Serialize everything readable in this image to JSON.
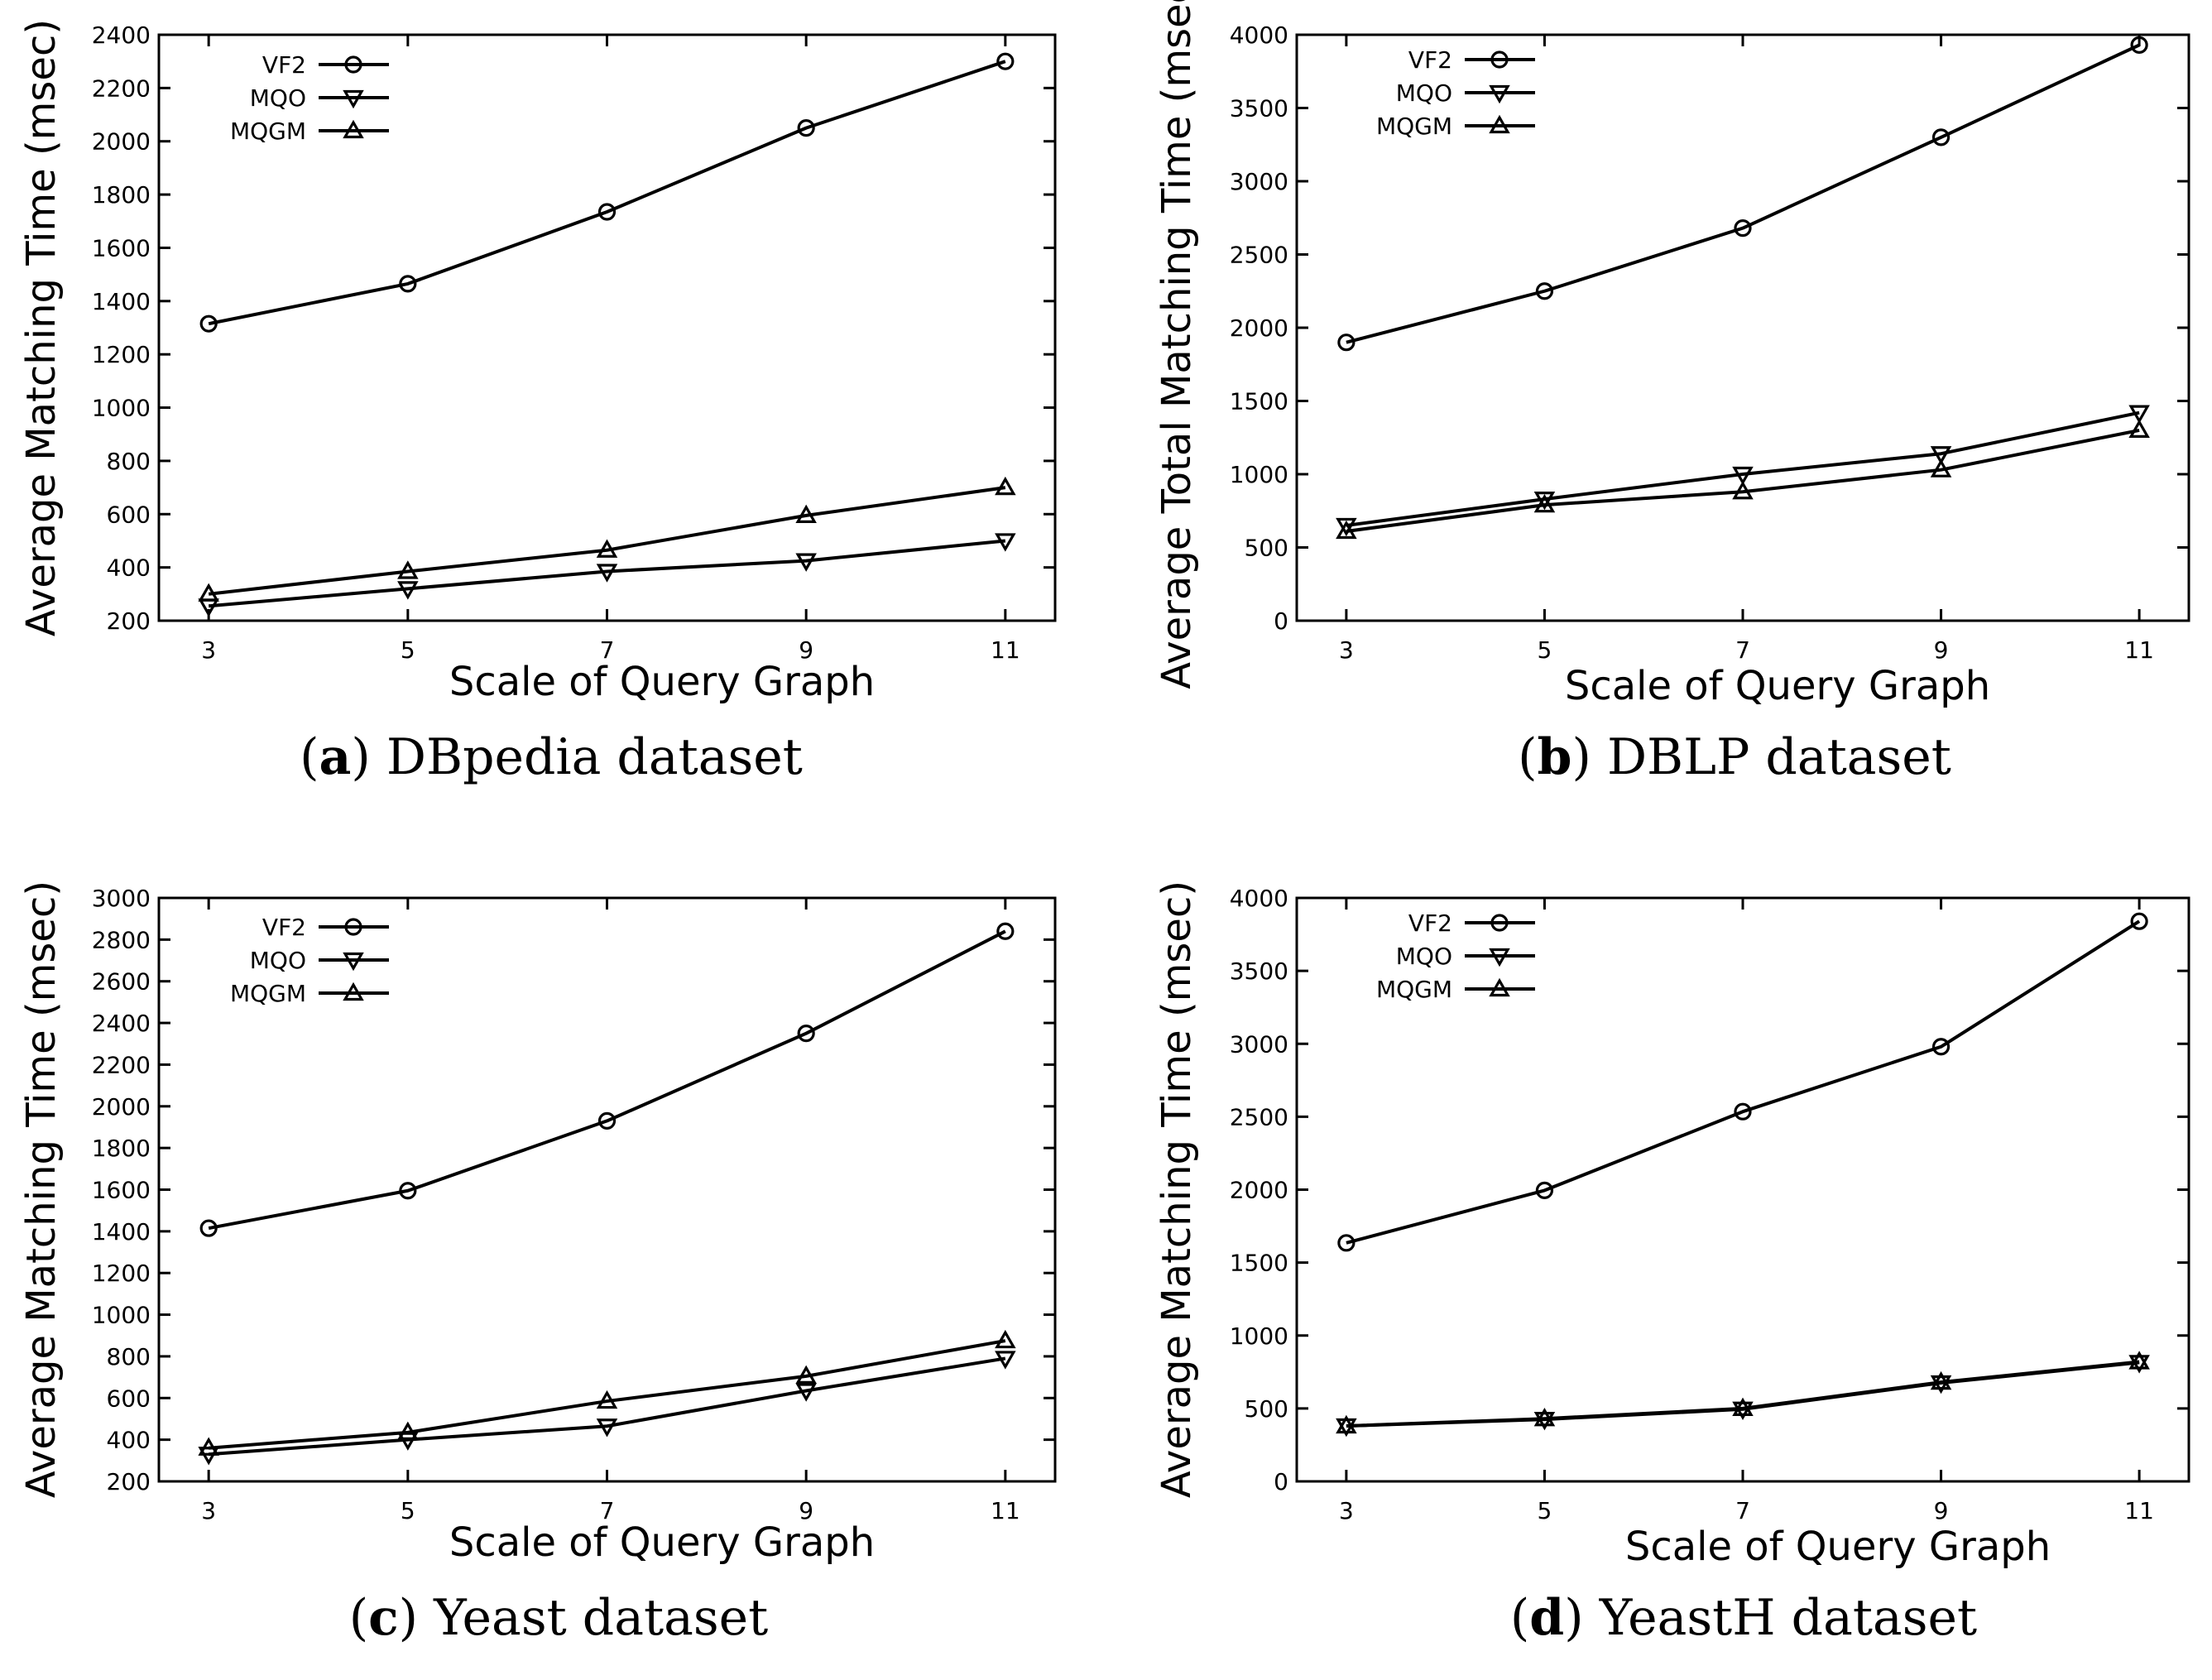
{
  "figure": {
    "legend_labels": [
      "VF2",
      "MQO",
      "MQGM"
    ]
  },
  "chart_data": [
    {
      "type": "line",
      "id": "a",
      "caption_letter": "a",
      "caption_text": "DBpedia dataset",
      "xlabel": "Scale of Query Graph",
      "ylabel": "Average Matching Time (msec)",
      "x": [
        3,
        5,
        7,
        9,
        11
      ],
      "xlim": [
        2.5,
        11.5
      ],
      "ylim": [
        200,
        2400
      ],
      "yticks": [
        200,
        400,
        600,
        800,
        1000,
        1200,
        1400,
        1600,
        1800,
        2000,
        2200,
        2400
      ],
      "grid": false,
      "legend": "top-left",
      "series": [
        {
          "name": "VF2",
          "marker": "circle",
          "values": [
            1315,
            1465,
            1735,
            2050,
            2300
          ]
        },
        {
          "name": "MQO",
          "marker": "triangle-down",
          "values": [
            255,
            320,
            385,
            425,
            500
          ]
        },
        {
          "name": "MQGM",
          "marker": "triangle-up",
          "values": [
            300,
            385,
            465,
            595,
            700
          ]
        }
      ]
    },
    {
      "type": "line",
      "id": "b",
      "caption_letter": "b",
      "caption_text": "DBLP dataset",
      "xlabel": "Scale of Query Graph",
      "ylabel": "Average Total Matching Time (msec)",
      "x": [
        3,
        5,
        7,
        9,
        11
      ],
      "xlim": [
        2.5,
        11.5
      ],
      "ylim": [
        0,
        4000
      ],
      "yticks": [
        0,
        500,
        1000,
        1500,
        2000,
        2500,
        3000,
        3500,
        4000
      ],
      "grid": false,
      "legend": "top-left",
      "series": [
        {
          "name": "VF2",
          "marker": "circle",
          "values": [
            1900,
            2250,
            2680,
            3300,
            3930
          ]
        },
        {
          "name": "MQO",
          "marker": "triangle-down",
          "values": [
            650,
            830,
            1000,
            1140,
            1420
          ]
        },
        {
          "name": "MQGM",
          "marker": "triangle-up",
          "values": [
            610,
            790,
            880,
            1030,
            1300
          ]
        }
      ]
    },
    {
      "type": "line",
      "id": "c",
      "caption_letter": "c",
      "caption_text": "Yeast dataset",
      "xlabel": "Scale of Query Graph",
      "ylabel": "Average Matching Time (msec)",
      "x": [
        3,
        5,
        7,
        9,
        11
      ],
      "xlim": [
        2.5,
        11.5
      ],
      "ylim": [
        200,
        3000
      ],
      "yticks": [
        200,
        400,
        600,
        800,
        1000,
        1200,
        1400,
        1600,
        1800,
        2000,
        2200,
        2400,
        2600,
        2800,
        3000
      ],
      "grid": false,
      "legend": "top-left",
      "series": [
        {
          "name": "VF2",
          "marker": "circle",
          "values": [
            1415,
            1595,
            1930,
            2350,
            2840
          ]
        },
        {
          "name": "MQO",
          "marker": "triangle-down",
          "values": [
            330,
            400,
            465,
            635,
            790
          ]
        },
        {
          "name": "MQGM",
          "marker": "triangle-up",
          "values": [
            360,
            435,
            585,
            705,
            875
          ]
        }
      ]
    },
    {
      "type": "line",
      "id": "d",
      "caption_letter": "d",
      "caption_text": "YeastH dataset",
      "xlabel": "Scale of Query Graph",
      "ylabel": "Average Matching Time (msec)",
      "x": [
        3,
        5,
        7,
        9,
        11
      ],
      "xlim": [
        2.5,
        11.5
      ],
      "ylim": [
        0,
        4000
      ],
      "yticks": [
        0,
        500,
        1000,
        1500,
        2000,
        2500,
        3000,
        3500,
        4000
      ],
      "grid": false,
      "legend": "top-left",
      "series": [
        {
          "name": "VF2",
          "marker": "circle",
          "values": [
            1635,
            1995,
            2535,
            2980,
            3840
          ]
        },
        {
          "name": "MQO",
          "marker": "triangle-down",
          "values": [
            380,
            425,
            495,
            675,
            815
          ]
        },
        {
          "name": "MQGM",
          "marker": "triangle-up",
          "values": [
            380,
            430,
            500,
            680,
            820
          ]
        }
      ]
    }
  ]
}
